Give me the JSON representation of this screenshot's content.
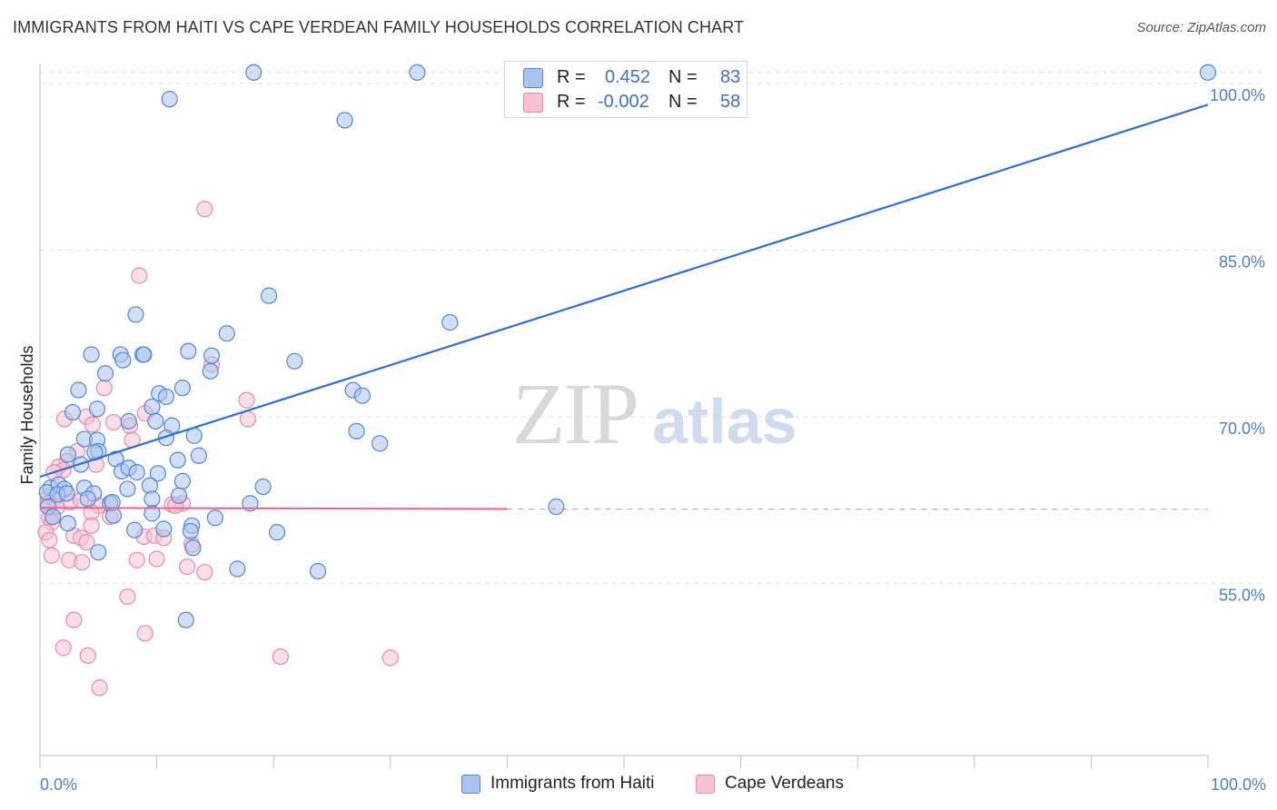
{
  "title": "IMMIGRANTS FROM HAITI VS CAPE VERDEAN FAMILY HOUSEHOLDS CORRELATION CHART",
  "source": "Source: ZipAtlas.com",
  "watermark": {
    "zip": "ZIP",
    "atlas": "atlas"
  },
  "legend_top": [
    {
      "r_label": "R =",
      "r_value": "0.452",
      "n_label": "N =",
      "n_value": "83"
    },
    {
      "r_label": "R =",
      "r_value": "-0.002",
      "n_label": "N =",
      "n_value": "58"
    }
  ],
  "legend_bottom": [
    {
      "label": "Immigrants from Haiti"
    },
    {
      "label": "Cape Verdeans"
    }
  ],
  "colors": {
    "blue_fill": "#a9c5ef",
    "blue_stroke": "#4f86d9",
    "blue_line": "#2f6fd0",
    "pink_fill": "#f8c2d3",
    "pink_stroke": "#e78aa9",
    "pink_line": "#ea6b94",
    "grid": "#e2e2e2",
    "axis_text": "#4a7fd4"
  },
  "chart_data": {
    "type": "scatter",
    "title": "IMMIGRANTS FROM HAITI VS CAPE VERDEAN FAMILY HOUSEHOLDS CORRELATION CHART",
    "xlabel": "",
    "ylabel": "Family Households",
    "xlim": [
      0,
      100
    ],
    "ylim": [
      39.5,
      101.8
    ],
    "x_tick_labels": [
      {
        "value": 0,
        "label": "0.0%"
      },
      {
        "value": 100,
        "label": "100.0%"
      }
    ],
    "y_ticks": [
      {
        "value": 55,
        "label": "55.0%"
      },
      {
        "value": 70,
        "label": "70.0%"
      },
      {
        "value": 85,
        "label": "85.0%"
      },
      {
        "value": 100,
        "label": "100.0%"
      }
    ],
    "series": [
      {
        "name": "Immigrants from Haiti",
        "color": "blue",
        "trend": {
          "x": [
            0,
            100
          ],
          "y": [
            64.6,
            98.1
          ]
        },
        "points": [
          [
            18.3,
            101.0
          ],
          [
            32.3,
            101.0
          ],
          [
            100,
            101.0
          ],
          [
            11.1,
            98.6
          ],
          [
            26.1,
            96.7
          ],
          [
            19.6,
            80.9
          ],
          [
            8.2,
            79.2
          ],
          [
            35.1,
            78.5
          ],
          [
            16.0,
            77.5
          ],
          [
            4.4,
            75.6
          ],
          [
            6.9,
            75.6
          ],
          [
            8.8,
            75.6
          ],
          [
            8.9,
            75.6
          ],
          [
            12.7,
            75.9
          ],
          [
            14.7,
            75.5
          ],
          [
            7.1,
            75.1
          ],
          [
            21.8,
            75.0
          ],
          [
            5.6,
            73.9
          ],
          [
            14.6,
            74.1
          ],
          [
            3.3,
            72.4
          ],
          [
            12.2,
            72.6
          ],
          [
            10.2,
            72.1
          ],
          [
            26.8,
            72.4
          ],
          [
            27.6,
            71.9
          ],
          [
            10.8,
            71.8
          ],
          [
            9.6,
            70.9
          ],
          [
            4.9,
            70.7
          ],
          [
            2.8,
            70.4
          ],
          [
            7.6,
            69.6
          ],
          [
            9.9,
            69.6
          ],
          [
            11.3,
            69.2
          ],
          [
            27.1,
            68.7
          ],
          [
            29.1,
            67.6
          ],
          [
            3.8,
            68.0
          ],
          [
            4.9,
            67.9
          ],
          [
            10.8,
            68.1
          ],
          [
            13.2,
            68.3
          ],
          [
            2.4,
            66.6
          ],
          [
            5.0,
            66.9
          ],
          [
            4.7,
            66.8
          ],
          [
            13.6,
            66.5
          ],
          [
            3.5,
            65.7
          ],
          [
            6.5,
            66.2
          ],
          [
            11.8,
            66.1
          ],
          [
            7.0,
            65.1
          ],
          [
            7.6,
            65.4
          ],
          [
            8.3,
            65.0
          ],
          [
            10.1,
            64.9
          ],
          [
            12.2,
            64.2
          ],
          [
            0.9,
            63.6
          ],
          [
            1.6,
            63.9
          ],
          [
            2.1,
            63.5
          ],
          [
            3.8,
            63.6
          ],
          [
            4.6,
            63.1
          ],
          [
            7.5,
            63.5
          ],
          [
            9.4,
            63.8
          ],
          [
            19.1,
            63.7
          ],
          [
            0.6,
            63.2
          ],
          [
            1.5,
            63.0
          ],
          [
            2.3,
            63.1
          ],
          [
            4.1,
            62.6
          ],
          [
            6.0,
            62.2
          ],
          [
            6.2,
            62.3
          ],
          [
            9.6,
            62.6
          ],
          [
            11.9,
            62.9
          ],
          [
            18.0,
            62.2
          ],
          [
            44.2,
            61.9
          ],
          [
            0.7,
            61.9
          ],
          [
            1.1,
            61.0
          ],
          [
            6.3,
            61.1
          ],
          [
            9.6,
            61.3
          ],
          [
            15.0,
            60.9
          ],
          [
            2.4,
            60.4
          ],
          [
            13.0,
            60.2
          ],
          [
            8.1,
            59.8
          ],
          [
            10.6,
            59.9
          ],
          [
            12.9,
            59.7
          ],
          [
            20.3,
            59.6
          ],
          [
            13.1,
            58.2
          ],
          [
            5.0,
            57.8
          ],
          [
            16.9,
            56.3
          ],
          [
            23.8,
            56.1
          ],
          [
            12.5,
            51.7
          ]
        ]
      },
      {
        "name": "Cape Verdeans",
        "color": "pink",
        "trend": {
          "x": [
            0,
            40
          ],
          "y": [
            61.8,
            61.7
          ],
          "dashed_to": 100
        },
        "points": [
          [
            14.1,
            88.7
          ],
          [
            8.5,
            82.7
          ],
          [
            14.7,
            74.7
          ],
          [
            5.5,
            72.6
          ],
          [
            17.7,
            71.5
          ],
          [
            9.0,
            70.3
          ],
          [
            2.1,
            69.8
          ],
          [
            4.0,
            70.0
          ],
          [
            17.8,
            69.8
          ],
          [
            6.3,
            69.5
          ],
          [
            4.5,
            69.3
          ],
          [
            7.7,
            69.2
          ],
          [
            7.9,
            67.9
          ],
          [
            3.2,
            66.9
          ],
          [
            2.3,
            66.0
          ],
          [
            1.6,
            65.5
          ],
          [
            2.0,
            65.2
          ],
          [
            4.8,
            65.7
          ],
          [
            1.2,
            65.0
          ],
          [
            0.7,
            62.8
          ],
          [
            1.2,
            62.6
          ],
          [
            0.7,
            62.2
          ],
          [
            1.5,
            61.9
          ],
          [
            2.6,
            62.3
          ],
          [
            3.5,
            62.5
          ],
          [
            5.0,
            62.0
          ],
          [
            11.3,
            62.1
          ],
          [
            12.2,
            62.2
          ],
          [
            4.4,
            61.4
          ],
          [
            0.8,
            60.9
          ],
          [
            1.0,
            60.5
          ],
          [
            4.4,
            60.2
          ],
          [
            0.5,
            59.6
          ],
          [
            0.8,
            58.9
          ],
          [
            2.9,
            59.3
          ],
          [
            3.5,
            59.1
          ],
          [
            4.0,
            58.7
          ],
          [
            8.9,
            59.2
          ],
          [
            9.8,
            59.3
          ],
          [
            10.6,
            59.1
          ],
          [
            13.0,
            58.5
          ],
          [
            1.0,
            57.5
          ],
          [
            2.5,
            57.1
          ],
          [
            3.6,
            56.9
          ],
          [
            8.3,
            57.1
          ],
          [
            10.0,
            57.2
          ],
          [
            12.6,
            56.5
          ],
          [
            14.1,
            56.0
          ],
          [
            7.5,
            53.8
          ],
          [
            2.9,
            51.7
          ],
          [
            9.0,
            50.5
          ],
          [
            2.0,
            49.2
          ],
          [
            4.1,
            48.5
          ],
          [
            20.6,
            48.4
          ],
          [
            30.0,
            48.3
          ],
          [
            5.1,
            45.6
          ],
          [
            11.6,
            62.0
          ],
          [
            6.0,
            61.0
          ]
        ]
      }
    ]
  }
}
